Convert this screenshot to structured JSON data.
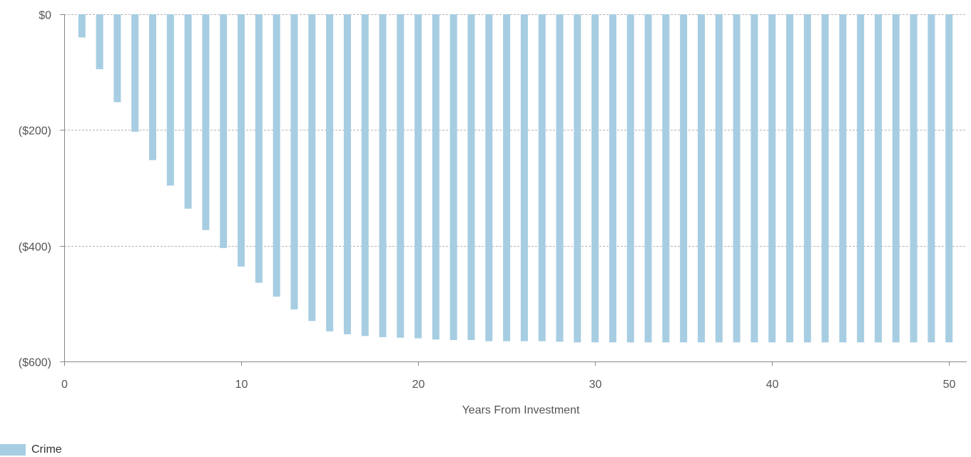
{
  "chart_data": {
    "type": "bar",
    "title": "",
    "xlabel": "Years From Investment",
    "ylabel": "",
    "xlim": [
      0,
      51
    ],
    "ylim": [
      -600,
      0
    ],
    "x_ticks": [
      0,
      10,
      20,
      30,
      40,
      50
    ],
    "x_tick_labels": [
      "0",
      "10",
      "20",
      "30",
      "40",
      "50"
    ],
    "y_ticks": [
      0,
      -200,
      -400,
      -600
    ],
    "y_tick_labels": [
      "$0",
      "($200)",
      "($400)",
      "($600)"
    ],
    "grid": "horizontal dashed",
    "legend_position": "bottom-left",
    "bar_color": "#a7cde2",
    "series": [
      {
        "name": "Crime",
        "x": [
          1,
          2,
          3,
          4,
          5,
          6,
          7,
          8,
          9,
          10,
          11,
          12,
          13,
          14,
          15,
          16,
          17,
          18,
          19,
          20,
          21,
          22,
          23,
          24,
          25,
          26,
          27,
          28,
          29,
          30,
          31,
          32,
          33,
          34,
          35,
          36,
          37,
          38,
          39,
          40,
          41,
          42,
          43,
          44,
          45,
          46,
          47,
          48,
          49,
          50
        ],
        "values": [
          -40,
          -95,
          -152,
          -203,
          -252,
          -296,
          -336,
          -373,
          -404,
          -436,
          -464,
          -488,
          -510,
          -530,
          -548,
          -553,
          -556,
          -558,
          -559,
          -560,
          -562,
          -563,
          -563,
          -565,
          -565,
          -565,
          -565,
          -566,
          -567,
          -567,
          -567,
          -567,
          -567,
          -567,
          -567,
          -567,
          -567,
          -567,
          -567,
          -567,
          -567,
          -567,
          -567,
          -567,
          -567,
          -567,
          -567,
          -567,
          -567,
          -567
        ]
      }
    ]
  }
}
